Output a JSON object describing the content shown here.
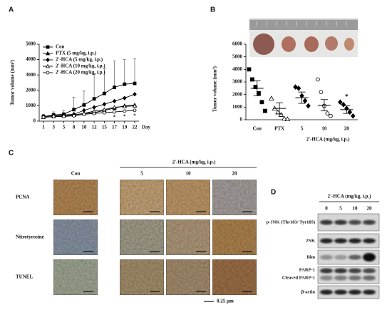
{
  "chart_data": [
    {
      "type": "line",
      "label": "A",
      "ylabel": "Tumor volume (mm³)",
      "xlabel": "Day",
      "categories": [
        "1",
        "3",
        "5",
        "8",
        "10",
        "12",
        "15",
        "17",
        "19",
        "22"
      ],
      "ylim": [
        0,
        5000
      ],
      "yticks": [
        0,
        1000,
        2000,
        3000,
        4000,
        5000
      ],
      "series": [
        {
          "name": "Con",
          "color": "#000000",
          "marker": "square",
          "filled": true,
          "values": [
            300,
            400,
            450,
            750,
            1050,
            1450,
            1800,
            2200,
            2400,
            2450
          ],
          "errors": [
            150,
            200,
            250,
            800,
            900,
            1600,
            1600,
            1700,
            1600,
            1600
          ]
        },
        {
          "name": "PTX (5 mg/kg, i.p.)",
          "color": "#000000",
          "marker": "triangle",
          "filled": true,
          "values": [
            250,
            300,
            350,
            400,
            500,
            550,
            700,
            850,
            1000,
            1050
          ]
        },
        {
          "name": "2'-HCA (5 mg/kg, i.p.)",
          "color": "#000000",
          "marker": "diamond",
          "filled": true,
          "values": [
            300,
            350,
            400,
            450,
            700,
            900,
            1100,
            1300,
            1500,
            1750
          ]
        },
        {
          "name": "2'-HCA (10 mg/kg, i.p.)",
          "color": "#000000",
          "marker": "triangle",
          "filled": false,
          "values": [
            250,
            300,
            350,
            400,
            500,
            650,
            750,
            900,
            950,
            1000
          ]
        },
        {
          "name": "2'-HCA (20 mg/kg, i.p.)",
          "color": "#000000",
          "marker": "circle",
          "filled": false,
          "values": [
            250,
            300,
            300,
            350,
            450,
            500,
            550,
            600,
            650,
            700
          ]
        }
      ],
      "annotations": [
        "*",
        "*",
        "*"
      ]
    },
    {
      "type": "dot",
      "label": "B",
      "ylabel": "Tumor volume (mm³)",
      "xlabel": "2'-HCA (mg/kg, i.p.)",
      "categories": [
        "Con",
        "PTX",
        "5",
        "10",
        "20"
      ],
      "ylim": [
        0,
        6000
      ],
      "yticks": [
        0,
        1000,
        2000,
        3000,
        4000,
        5000,
        6000
      ],
      "values": [
        2500,
        900,
        1750,
        1150,
        800
      ],
      "errors": [
        600,
        450,
        450,
        450,
        300
      ],
      "markers": [
        "square",
        "triangle",
        "diamond",
        "circle",
        "diamond"
      ],
      "filled": [
        true,
        false,
        true,
        false,
        true
      ],
      "points": [
        [
          4000,
          3200,
          2600,
          2100,
          1400,
          700
        ],
        [
          1700,
          900,
          600,
          400,
          100,
          50
        ],
        [
          2600,
          2500,
          1900,
          1500,
          1100
        ],
        [
          3200,
          2200,
          1100,
          500,
          300
        ],
        [
          1400,
          1200,
          900,
          600,
          300
        ]
      ],
      "annotations": [
        "*"
      ]
    }
  ],
  "panel_c": {
    "label": "C",
    "header": "2'-HCA (mg/kg, i.p.)",
    "columns": [
      "Con",
      "5",
      "10",
      "20"
    ],
    "rows": [
      "PCNA",
      "Nitrotyrosine",
      "TUNEL"
    ],
    "scale_bar": "0.25 μm"
  },
  "panel_d": {
    "label": "D",
    "header": "2'-HCA (mg/kg, i.p.)",
    "lanes": [
      "0",
      "5",
      "10",
      "20"
    ],
    "rows": [
      "p-JNK (Thr183/ Tyr185)",
      "JNK",
      "Bim",
      "PARP-1",
      "Cleaved PARP-1",
      "β-actin"
    ]
  }
}
